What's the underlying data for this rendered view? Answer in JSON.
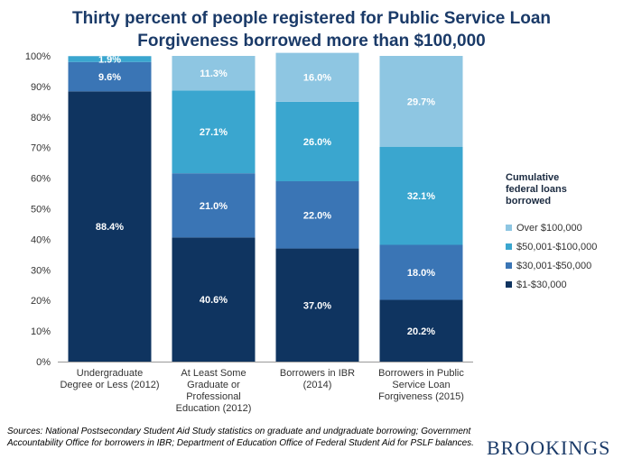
{
  "chart_data": {
    "type": "bar",
    "stacked": true,
    "title": "Thirty percent of people registered for Public Service Loan Forgiveness borrowed more than $100,000",
    "categories": [
      "Undergraduate Degree or Less (2012)",
      "At Least Some Graduate or Professional Education (2012)",
      "Borrowers in IBR (2014)",
      "Borrowers in Public Service Loan Forgiveness (2015)"
    ],
    "series": [
      {
        "name": "$1-$30,000",
        "color": "#0f3460",
        "values": [
          88.4,
          40.6,
          37.0,
          20.2
        ],
        "labels": [
          "88.4%",
          "40.6%",
          "37.0%",
          "20.2%"
        ]
      },
      {
        "name": "$30,001-$50,000",
        "color": "#3a75b5",
        "values": [
          9.6,
          21.0,
          22.0,
          18.0
        ],
        "labels": [
          "9.6%",
          "21.0%",
          "22.0%",
          "18.0%"
        ]
      },
      {
        "name": "$50,001-$100,000",
        "color": "#3aa6cf",
        "values": [
          1.9,
          27.1,
          26.0,
          32.1
        ],
        "labels": [
          "1.9%",
          "27.1%",
          "26.0%",
          "32.1%"
        ]
      },
      {
        "name": "Over $100,000",
        "color": "#8ec6e2",
        "values": [
          0.1,
          11.3,
          16.0,
          29.7
        ],
        "labels": [
          "",
          "11.3%",
          "16.0%",
          "29.7%"
        ]
      }
    ],
    "ylim": [
      0,
      100
    ],
    "yticks": [
      "0%",
      "10%",
      "20%",
      "30%",
      "40%",
      "50%",
      "60%",
      "70%",
      "80%",
      "90%",
      "100%"
    ],
    "legend": {
      "title": "Cumulative federal loans borrowed",
      "placement": "right",
      "order": [
        "Over $100,000",
        "$50,001-$100,000",
        "$30,001-$50,000",
        "$1-$30,000"
      ]
    }
  },
  "sources": "Sources: National Postsecondary Student Aid Study statistics on graduate and undgraduate borrowing; Government Accountability Office for borrowers in IBR; Department of Education Office of Federal Student Aid for PSLF balances.",
  "brand": "BROOKINGS"
}
